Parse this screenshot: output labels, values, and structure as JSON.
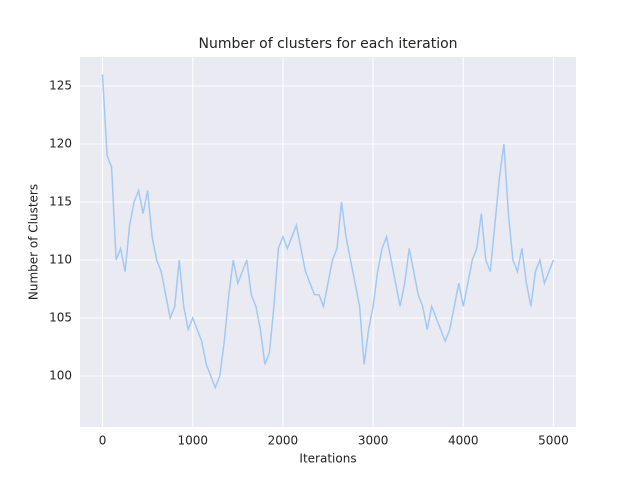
{
  "chart_data": {
    "type": "line",
    "title": "Number of clusters for each iteration",
    "x_label": "Iterations",
    "y_label": "Number of Clusters",
    "x": [
      0,
      50,
      100,
      150,
      200,
      250,
      300,
      350,
      400,
      450,
      500,
      550,
      600,
      650,
      700,
      750,
      800,
      850,
      900,
      950,
      1000,
      1050,
      1100,
      1150,
      1200,
      1250,
      1300,
      1350,
      1400,
      1450,
      1500,
      1550,
      1600,
      1650,
      1700,
      1750,
      1800,
      1850,
      1900,
      1950,
      2000,
      2050,
      2100,
      2150,
      2200,
      2250,
      2300,
      2350,
      2400,
      2450,
      2500,
      2550,
      2600,
      2650,
      2700,
      2750,
      2800,
      2850,
      2900,
      2950,
      3000,
      3050,
      3100,
      3150,
      3200,
      3250,
      3300,
      3350,
      3400,
      3450,
      3500,
      3550,
      3600,
      3650,
      3700,
      3750,
      3800,
      3850,
      3900,
      3950,
      4000,
      4050,
      4100,
      4150,
      4200,
      4250,
      4300,
      4350,
      4400,
      4450,
      4500,
      4550,
      4600,
      4650,
      4700,
      4750,
      4800,
      4850,
      4900,
      4950,
      5000
    ],
    "series": [
      {
        "color": "#a1c9f4",
        "values": [
          126,
          119,
          118,
          110,
          111,
          109,
          113,
          115,
          116,
          114,
          116,
          112,
          110,
          109,
          107,
          105,
          106,
          110,
          106,
          104,
          105,
          104,
          103,
          101,
          100,
          99,
          100,
          103,
          107,
          110,
          108,
          109,
          110,
          107,
          106,
          104,
          101,
          102,
          106,
          111,
          112,
          111,
          112,
          113,
          111,
          109,
          108,
          107,
          107,
          106,
          108,
          110,
          111,
          115,
          112,
          110,
          108,
          106,
          101,
          104,
          106,
          109,
          111,
          112,
          110,
          108,
          106,
          108,
          111,
          109,
          107,
          106,
          104,
          106,
          105,
          104,
          103,
          104,
          106,
          108,
          106,
          108,
          110,
          111,
          114,
          110,
          109,
          113,
          117,
          120,
          114,
          110,
          109,
          111,
          108,
          106,
          109,
          110,
          108,
          109,
          110
        ]
      }
    ],
    "xlim": [
      -250,
      5250
    ],
    "ylim": [
      95.6,
      127.5
    ],
    "xticks": [
      0,
      1000,
      2000,
      3000,
      4000,
      5000
    ],
    "yticks": [
      100,
      105,
      110,
      115,
      120,
      125
    ],
    "grid": true
  }
}
